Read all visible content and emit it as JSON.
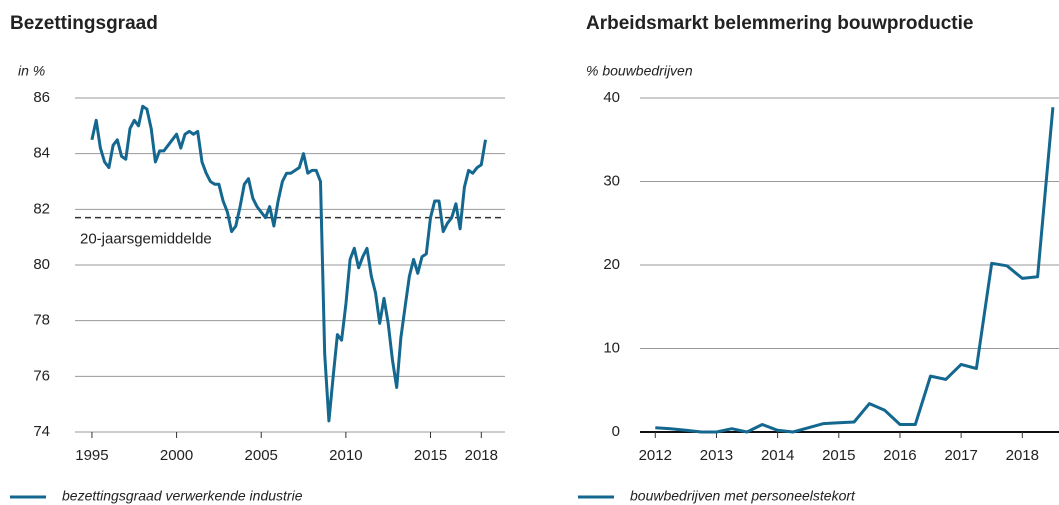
{
  "chart_data": [
    {
      "type": "line",
      "title": "Bezettingsgraad",
      "y_label": "in %",
      "x": [
        1995,
        1995.25,
        1995.5,
        1995.75,
        1996,
        1996.25,
        1996.5,
        1996.75,
        1997,
        1997.25,
        1997.5,
        1997.75,
        1998,
        1998.25,
        1998.5,
        1998.75,
        1999,
        1999.25,
        1999.5,
        1999.75,
        2000,
        2000.25,
        2000.5,
        2000.75,
        2001,
        2001.25,
        2001.5,
        2001.75,
        2002,
        2002.25,
        2002.5,
        2002.75,
        2003,
        2003.25,
        2003.5,
        2003.75,
        2004,
        2004.25,
        2004.5,
        2004.75,
        2005,
        2005.25,
        2005.5,
        2005.75,
        2006,
        2006.25,
        2006.5,
        2006.75,
        2007,
        2007.25,
        2007.5,
        2007.75,
        2008,
        2008.25,
        2008.5,
        2008.75,
        2009,
        2009.25,
        2009.5,
        2009.75,
        2010,
        2010.25,
        2010.5,
        2010.75,
        2011,
        2011.25,
        2011.5,
        2011.75,
        2012,
        2012.25,
        2012.5,
        2012.75,
        2013,
        2013.25,
        2013.5,
        2013.75,
        2014,
        2014.25,
        2014.5,
        2014.75,
        2015,
        2015.25,
        2015.5,
        2015.75,
        2016,
        2016.25,
        2016.5,
        2016.75,
        2017,
        2017.25,
        2017.5,
        2017.75,
        2018,
        2018.25
      ],
      "series": [
        {
          "name": "bezettingsgraad verwerkende industrie",
          "color": "#14688f",
          "values": [
            84.5,
            85.2,
            84.2,
            83.7,
            83.5,
            84.3,
            84.5,
            83.9,
            83.8,
            84.9,
            85.2,
            85.0,
            85.7,
            85.6,
            84.9,
            83.7,
            84.1,
            84.1,
            84.3,
            84.5,
            84.7,
            84.2,
            84.7,
            84.8,
            84.7,
            84.8,
            83.7,
            83.3,
            83.0,
            82.9,
            82.9,
            82.3,
            81.9,
            81.2,
            81.4,
            82.1,
            82.9,
            83.1,
            82.4,
            82.1,
            81.9,
            81.7,
            82.1,
            81.4,
            82.3,
            83.0,
            83.3,
            83.3,
            83.4,
            83.5,
            84.0,
            83.3,
            83.4,
            83.4,
            83.0,
            76.8,
            74.4,
            76.0,
            77.5,
            77.3,
            78.6,
            80.2,
            80.6,
            79.9,
            80.3,
            80.6,
            79.6,
            79.0,
            77.9,
            78.8,
            77.9,
            76.6,
            75.6,
            77.4,
            78.5,
            79.6,
            80.2,
            79.7,
            80.3,
            80.4,
            81.7,
            82.3,
            82.3,
            81.2,
            81.5,
            81.7,
            82.2,
            81.3,
            82.8,
            83.4,
            83.3,
            83.5,
            83.6,
            84.5
          ]
        }
      ],
      "reference": {
        "value": 81.7,
        "label": "20-jaarsgemiddelde"
      },
      "xlim": [
        1994,
        2019.4
      ],
      "xticks": [
        1995,
        2000,
        2005,
        2010,
        2015,
        2018
      ],
      "ylim": [
        74,
        86
      ],
      "yticks": [
        74,
        76,
        78,
        80,
        82,
        84,
        86
      ],
      "grid": true
    },
    {
      "type": "line",
      "title": "Arbeidsmarkt belemmering bouwproductie",
      "y_label": "% bouwbedrijven",
      "x": [
        2012,
        2012.25,
        2012.5,
        2012.75,
        2013,
        2013.25,
        2013.5,
        2013.75,
        2014,
        2014.25,
        2014.5,
        2014.75,
        2015,
        2015.25,
        2015.5,
        2015.75,
        2016,
        2016.25,
        2016.5,
        2016.75,
        2017,
        2017.25,
        2017.5,
        2017.75,
        2018,
        2018.25,
        2018.5
      ],
      "series": [
        {
          "name": "bouwbedrijven met personeelstekort",
          "color": "#14688f",
          "values": [
            0.5,
            0.4,
            0.2,
            0,
            0,
            0.4,
            0,
            0.9,
            0.2,
            0,
            0.5,
            1.0,
            1.1,
            1.2,
            3.4,
            2.6,
            0.9,
            0.9,
            6.7,
            6.3,
            8.1,
            7.6,
            20.2,
            19.9,
            18.4,
            18.6,
            38.9
          ]
        }
      ],
      "xlim": [
        2011.75,
        2018.6
      ],
      "xticks": [
        2012,
        2013,
        2014,
        2015,
        2016,
        2017,
        2018
      ],
      "ylim": [
        0,
        40
      ],
      "yticks": [
        0,
        10,
        20,
        30,
        40
      ],
      "grid": true
    }
  ]
}
